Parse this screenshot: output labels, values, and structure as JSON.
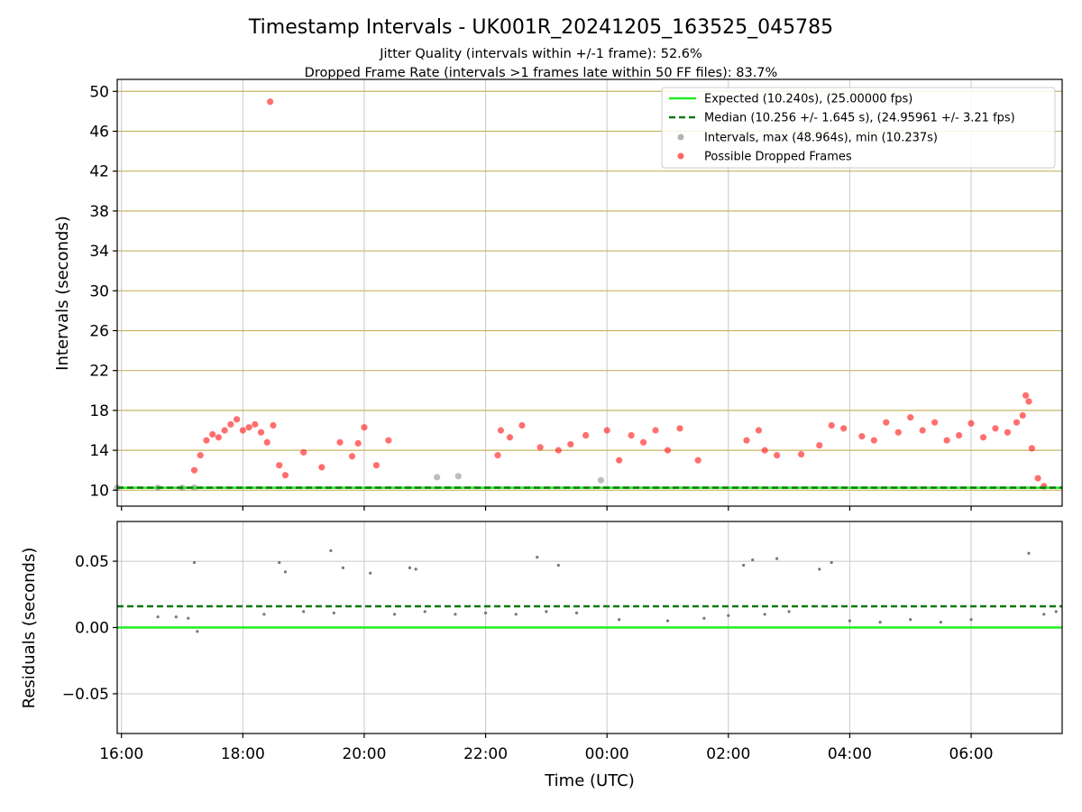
{
  "chart_data": [
    {
      "type": "scatter",
      "title": "Timestamp Intervals - UK001R_20241205_163525_045785",
      "subtitle_lines": [
        "Jitter Quality (intervals within +/-1 frame): 52.6%",
        "Dropped Frame Rate (intervals >1 frames late within 50 FF files): 83.7%"
      ],
      "ylabel": "Intervals (seconds)",
      "xlabel": "",
      "x_unit": "hours since 16:00 UTC (2024-12-05)",
      "xlim": [
        -0.07,
        15.5
      ],
      "ylim": [
        8.4,
        51.2
      ],
      "yticks": [
        10,
        14,
        18,
        22,
        26,
        30,
        34,
        38,
        42,
        46,
        50
      ],
      "ytick_labels": [
        "10",
        "14",
        "18",
        "22",
        "26",
        "30",
        "34",
        "38",
        "42",
        "46",
        "50"
      ],
      "grid": "on",
      "horizontal_grid_color": "#c8b560",
      "legend_position": "top-right",
      "legend": [
        {
          "label": "Expected (10.240s), (25.00000 fps)",
          "kind": "solid-line",
          "color": "#22ee22"
        },
        {
          "label": "Median (10.256 +/- 1.645 s), (24.95961 +/- 3.21 fps)",
          "kind": "dashed-line",
          "color": "#117711"
        },
        {
          "label": "Intervals, max (48.964s), min (10.237s)",
          "kind": "marker",
          "color": "#999999"
        },
        {
          "label": "Possible Dropped Frames",
          "kind": "marker",
          "color": "#ff3333"
        }
      ],
      "expected_interval": 10.24,
      "median_interval": 10.256,
      "series": [
        {
          "name": "Intervals, max (48.964s), min (10.237s)",
          "color": "#999999",
          "points": [
            [
              -0.07,
              10.24
            ],
            [
              0.6,
              10.25
            ],
            [
              1.0,
              10.25
            ],
            [
              1.2,
              10.26
            ],
            [
              5.2,
              11.3
            ],
            [
              5.55,
              11.4
            ],
            [
              7.9,
              11.0
            ]
          ]
        },
        {
          "name": "Possible Dropped Frames",
          "color": "#ff2222",
          "points": [
            [
              2.45,
              48.96
            ],
            [
              1.2,
              12.0
            ],
            [
              1.3,
              13.5
            ],
            [
              1.4,
              15.0
            ],
            [
              1.5,
              15.6
            ],
            [
              1.6,
              15.3
            ],
            [
              1.7,
              16.0
            ],
            [
              1.8,
              16.6
            ],
            [
              1.9,
              17.1
            ],
            [
              2.0,
              16.0
            ],
            [
              2.1,
              16.3
            ],
            [
              2.2,
              16.6
            ],
            [
              2.3,
              15.8
            ],
            [
              2.4,
              14.8
            ],
            [
              2.5,
              16.5
            ],
            [
              2.6,
              12.5
            ],
            [
              2.7,
              11.5
            ],
            [
              3.0,
              13.8
            ],
            [
              3.3,
              12.3
            ],
            [
              3.6,
              14.8
            ],
            [
              3.8,
              13.4
            ],
            [
              3.9,
              14.7
            ],
            [
              4.0,
              16.3
            ],
            [
              4.2,
              12.5
            ],
            [
              4.4,
              15.0
            ],
            [
              6.2,
              13.5
            ],
            [
              6.25,
              16.0
            ],
            [
              6.4,
              15.3
            ],
            [
              6.6,
              16.5
            ],
            [
              6.9,
              14.3
            ],
            [
              7.2,
              14.0
            ],
            [
              7.4,
              14.6
            ],
            [
              7.65,
              15.5
            ],
            [
              8.0,
              16.0
            ],
            [
              8.2,
              13.0
            ],
            [
              8.4,
              15.5
            ],
            [
              8.6,
              14.8
            ],
            [
              8.8,
              16.0
            ],
            [
              9.0,
              14.0
            ],
            [
              9.2,
              16.2
            ],
            [
              9.5,
              13.0
            ],
            [
              10.3,
              15.0
            ],
            [
              10.5,
              16.0
            ],
            [
              10.6,
              14.0
            ],
            [
              10.8,
              13.5
            ],
            [
              11.2,
              13.6
            ],
            [
              11.5,
              14.5
            ],
            [
              11.7,
              16.5
            ],
            [
              11.9,
              16.2
            ],
            [
              12.2,
              15.4
            ],
            [
              12.4,
              15.0
            ],
            [
              12.6,
              16.8
            ],
            [
              12.8,
              15.8
            ],
            [
              13.0,
              17.3
            ],
            [
              13.2,
              16.0
            ],
            [
              13.4,
              16.8
            ],
            [
              13.6,
              15.0
            ],
            [
              13.8,
              15.5
            ],
            [
              14.0,
              16.7
            ],
            [
              14.2,
              15.3
            ],
            [
              14.4,
              16.2
            ],
            [
              14.6,
              15.8
            ],
            [
              14.75,
              16.8
            ],
            [
              14.85,
              17.5
            ],
            [
              14.9,
              19.5
            ],
            [
              14.95,
              18.9
            ],
            [
              15.0,
              14.2
            ],
            [
              15.1,
              11.2
            ],
            [
              15.2,
              10.4
            ]
          ]
        }
      ]
    },
    {
      "type": "scatter",
      "title": "",
      "ylabel": "Residuals (seconds)",
      "xlabel": "Time (UTC)",
      "xlim": [
        -0.07,
        15.5
      ],
      "ylim": [
        -0.08,
        0.08
      ],
      "yticks": [
        0.05,
        0.0,
        -0.05
      ],
      "ytick_labels": [
        "0.05",
        "0.00",
        "−0.05"
      ],
      "xticks": [
        0,
        2,
        4,
        6,
        8,
        10,
        12,
        14
      ],
      "xtick_labels": [
        "16:00",
        "18:00",
        "20:00",
        "22:00",
        "00:00",
        "02:00",
        "04:00",
        "06:00"
      ],
      "grid": "on",
      "expected_residual": 0.0,
      "median_residual": 0.016,
      "series": [
        {
          "name": "",
          "color": "#777777",
          "points": [
            [
              1.2,
              0.049
            ],
            [
              1.25,
              -0.003
            ],
            [
              2.6,
              0.049
            ],
            [
              2.7,
              0.042
            ],
            [
              3.45,
              0.058
            ],
            [
              3.65,
              0.045
            ],
            [
              4.1,
              0.041
            ],
            [
              4.75,
              0.045
            ],
            [
              4.85,
              0.044
            ],
            [
              6.85,
              0.053
            ],
            [
              7.2,
              0.047
            ],
            [
              10.25,
              0.047
            ],
            [
              10.4,
              0.051
            ],
            [
              10.8,
              0.052
            ],
            [
              11.5,
              0.044
            ],
            [
              11.7,
              0.049
            ],
            [
              14.95,
              0.056
            ],
            [
              0.6,
              0.008
            ],
            [
              0.9,
              0.008
            ],
            [
              1.1,
              0.007
            ],
            [
              2.35,
              0.01
            ],
            [
              3.0,
              0.012
            ],
            [
              3.5,
              0.011
            ],
            [
              4.5,
              0.01
            ],
            [
              5.0,
              0.012
            ],
            [
              5.5,
              0.01
            ],
            [
              6.0,
              0.011
            ],
            [
              6.5,
              0.01
            ],
            [
              7.0,
              0.012
            ],
            [
              7.5,
              0.011
            ],
            [
              8.2,
              0.006
            ],
            [
              9.0,
              0.005
            ],
            [
              9.6,
              0.007
            ],
            [
              10.0,
              0.009
            ],
            [
              10.6,
              0.01
            ],
            [
              11.0,
              0.012
            ],
            [
              12.0,
              0.005
            ],
            [
              12.5,
              0.004
            ],
            [
              13.0,
              0.006
            ],
            [
              13.5,
              0.004
            ],
            [
              14.0,
              0.006
            ],
            [
              15.2,
              0.01
            ],
            [
              15.4,
              0.012
            ]
          ]
        }
      ]
    }
  ]
}
